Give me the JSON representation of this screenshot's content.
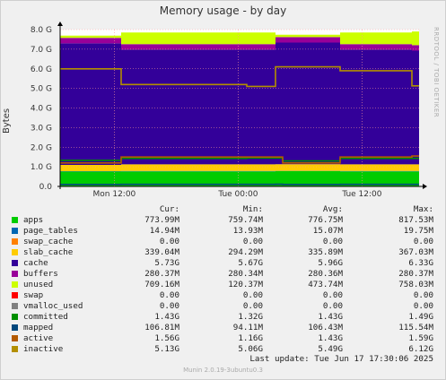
{
  "title": "Memory usage - by day",
  "side_label": "RRDTOOL / TOBI OETIKER",
  "footer": "Munin 2.0.19-3ubuntu0.3",
  "last_update": "Last update:  Tue Jun 17 17:30:06 2025",
  "legend_headers": {
    "cur": "Cur:",
    "min": "Min:",
    "avg": "Avg:",
    "max": "Max:"
  },
  "legend": [
    {
      "name": "apps",
      "color": "#00cc00",
      "cur": "773.99M",
      "min": "759.74M",
      "avg": "776.75M",
      "max": "817.53M"
    },
    {
      "name": "page_tables",
      "color": "#0066b3",
      "cur": "14.94M",
      "min": "13.93M",
      "avg": "15.07M",
      "max": "19.75M"
    },
    {
      "name": "swap_cache",
      "color": "#ff8000",
      "cur": "0.00",
      "min": "0.00",
      "avg": "0.00",
      "max": "0.00"
    },
    {
      "name": "slab_cache",
      "color": "#ffcc00",
      "cur": "339.04M",
      "min": "294.29M",
      "avg": "335.89M",
      "max": "367.03M"
    },
    {
      "name": "cache",
      "color": "#330099",
      "cur": "5.73G",
      "min": "5.67G",
      "avg": "5.96G",
      "max": "6.33G"
    },
    {
      "name": "buffers",
      "color": "#990099",
      "cur": "280.37M",
      "min": "280.34M",
      "avg": "280.36M",
      "max": "280.37M"
    },
    {
      "name": "unused",
      "color": "#ccff00",
      "cur": "709.16M",
      "min": "120.37M",
      "avg": "473.74M",
      "max": "758.03M"
    },
    {
      "name": "swap",
      "color": "#ff0000",
      "cur": "0.00",
      "min": "0.00",
      "avg": "0.00",
      "max": "0.00"
    },
    {
      "name": "vmalloc_used",
      "color": "#808080",
      "cur": "0.00",
      "min": "0.00",
      "avg": "0.00",
      "max": "0.00"
    },
    {
      "name": "committed",
      "color": "#008f00",
      "cur": "1.43G",
      "min": "1.32G",
      "avg": "1.43G",
      "max": "1.49G"
    },
    {
      "name": "mapped",
      "color": "#00487d",
      "cur": "106.81M",
      "min": "94.11M",
      "avg": "106.43M",
      "max": "115.54M"
    },
    {
      "name": "active",
      "color": "#b35a00",
      "cur": "1.56G",
      "min": "1.16G",
      "avg": "1.43G",
      "max": "1.59G"
    },
    {
      "name": "inactive",
      "color": "#b38f00",
      "cur": "5.13G",
      "min": "5.06G",
      "avg": "5.49G",
      "max": "6.12G"
    }
  ],
  "chart_data": {
    "type": "area",
    "title": "Memory usage - by day",
    "ylabel": "Bytes",
    "ylim": [
      0,
      8.0
    ],
    "y_unit": "G",
    "yticks": [
      "0.0",
      "1.0 G",
      "2.0 G",
      "3.0 G",
      "4.0 G",
      "5.0 G",
      "6.0 G",
      "7.0 G",
      "8.0 G"
    ],
    "xticks": [
      {
        "label": "Mon 12:00",
        "t": 0.151
      },
      {
        "label": "Tue 00:00",
        "t": 0.496
      },
      {
        "label": "Tue 12:00",
        "t": 0.841
      }
    ],
    "x_breaks": [
      0,
      0.17,
      0.52,
      0.6,
      0.62,
      0.78,
      0.98,
      1.0
    ],
    "stack_series": [
      {
        "name": "apps",
        "color": "#00cc00",
        "values": [
          0.76,
          0.77,
          0.77,
          0.78,
          0.78,
          0.77,
          0.77,
          0.77
        ]
      },
      {
        "name": "page_tables",
        "color": "#0066b3",
        "values": [
          0.015,
          0.015,
          0.015,
          0.015,
          0.015,
          0.015,
          0.015,
          0.015
        ]
      },
      {
        "name": "swap_cache",
        "color": "#ff8000",
        "values": [
          0,
          0,
          0,
          0,
          0,
          0,
          0,
          0
        ]
      },
      {
        "name": "slab_cache",
        "color": "#ffcc00",
        "values": [
          0.32,
          0.34,
          0.34,
          0.34,
          0.34,
          0.34,
          0.34,
          0.34
        ]
      },
      {
        "name": "cache",
        "color": "#330099",
        "values": [
          6.2,
          5.85,
          5.85,
          6.2,
          6.2,
          5.85,
          5.8,
          5.8
        ]
      },
      {
        "name": "buffers",
        "color": "#990099",
        "values": [
          0.28,
          0.28,
          0.28,
          0.28,
          0.28,
          0.28,
          0.28,
          0.28
        ]
      },
      {
        "name": "unused",
        "color": "#ccff00",
        "values": [
          0.12,
          0.6,
          0.6,
          0.12,
          0.12,
          0.6,
          0.7,
          0.71
        ]
      }
    ],
    "line_series": [
      {
        "name": "committed",
        "color": "#008f00",
        "values": [
          1.33,
          1.43,
          1.45,
          1.45,
          1.3,
          1.43,
          1.43,
          1.43
        ]
      },
      {
        "name": "mapped",
        "color": "#00487d",
        "values": [
          0.1,
          0.106,
          0.106,
          0.11,
          0.1,
          0.106,
          0.106,
          0.107
        ]
      },
      {
        "name": "active",
        "color": "#b35a00",
        "values": [
          1.2,
          1.5,
          1.5,
          1.5,
          1.2,
          1.5,
          1.55,
          1.56
        ]
      },
      {
        "name": "inactive",
        "color": "#b38f00",
        "values": [
          6.0,
          5.2,
          5.1,
          6.1,
          6.1,
          5.9,
          5.13,
          5.13
        ]
      }
    ]
  }
}
